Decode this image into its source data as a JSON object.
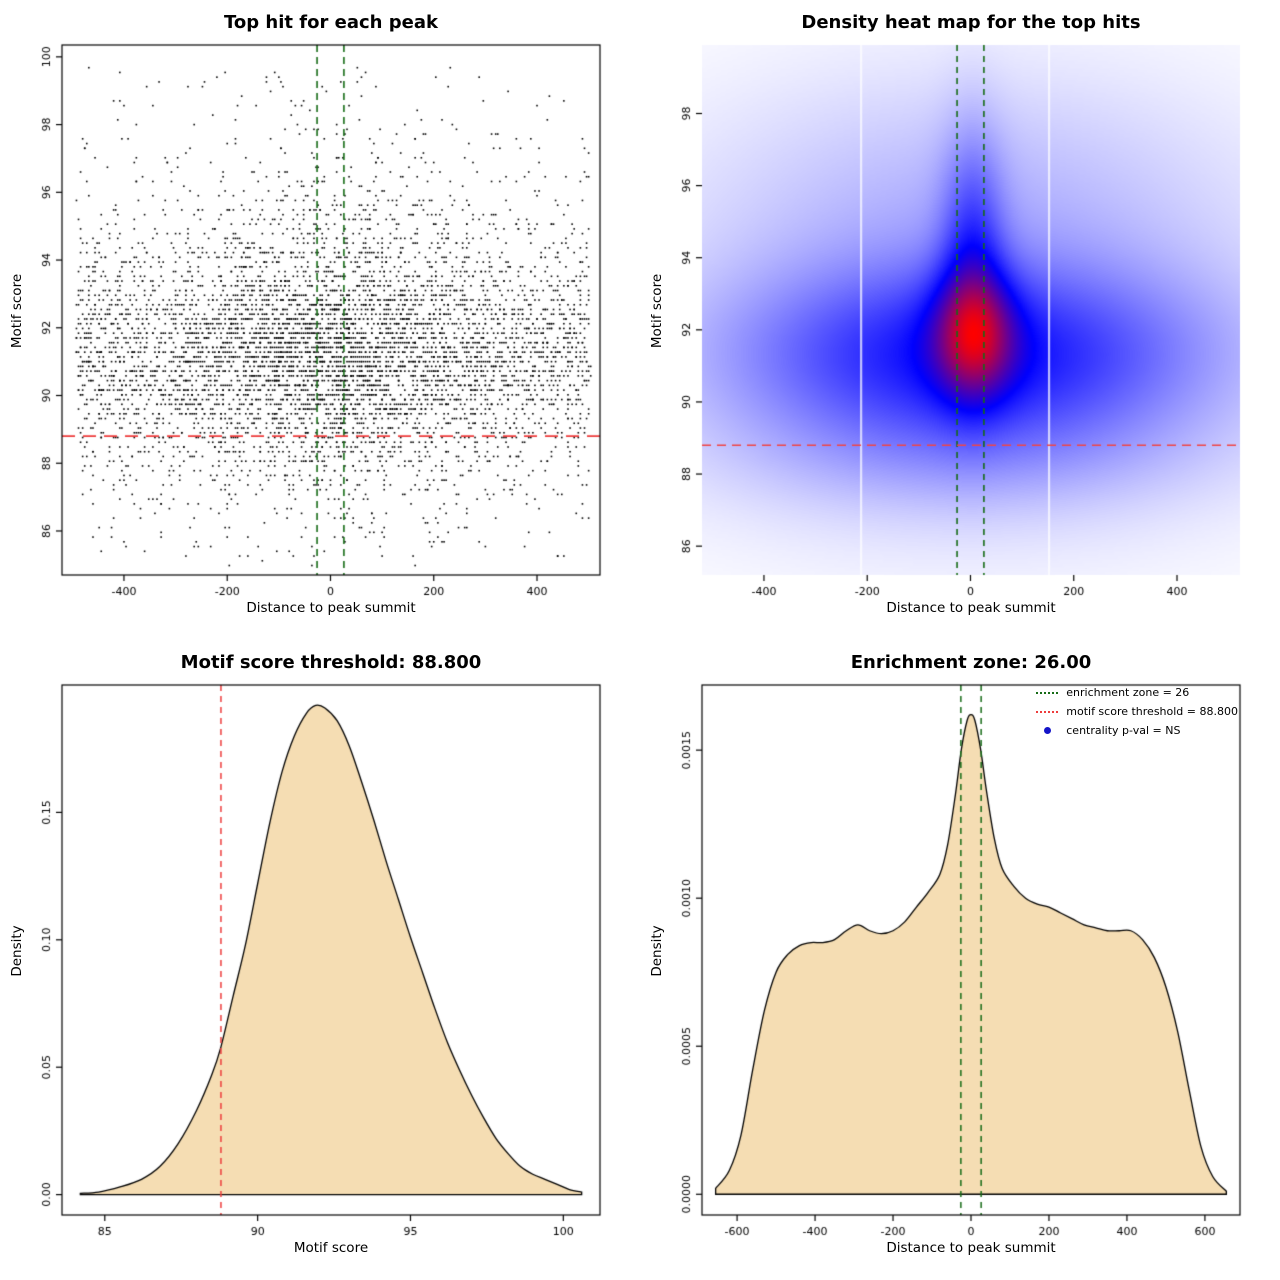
{
  "page": {
    "background": "#ffffff"
  },
  "chart_data": [
    {
      "type": "scatter",
      "title": "Top hit for each peak",
      "xlabel": "Distance to peak summit",
      "ylabel": "Motif score",
      "xlim": [
        -520,
        522
      ],
      "ylim": [
        84.7,
        100.35
      ],
      "xticks": [
        -400,
        -200,
        0,
        200,
        400
      ],
      "xtick_labels": [
        "-400",
        "-200",
        "0",
        "200",
        "400"
      ],
      "yticks": [
        86,
        88,
        90,
        92,
        94,
        96,
        98,
        100
      ],
      "ytick_labels": [
        "86",
        "88",
        "90",
        "92",
        "94",
        "96",
        "98",
        "100"
      ],
      "n_points": 6000,
      "seed": 1337,
      "x_dist": {
        "uniform_frac": 0.66,
        "uniform_range": [
          -492,
          502
        ],
        "center_sd": 155,
        "x_quantum": 4
      },
      "y_dist": [
        {
          "mean": 91.2,
          "sd": 1.45,
          "w": 0.6
        },
        {
          "mean": 93.6,
          "sd": 2.1,
          "w": 0.2
        },
        {
          "mean": 89.2,
          "sd": 1.7,
          "w": 0.13
        },
        {
          "uniform": [
            85.2,
            99.7
          ],
          "w": 0.07
        }
      ],
      "y_quantum": 0.14,
      "point_color": "#000000",
      "enrichment_zone_lines": {
        "x": [
          -26,
          26
        ],
        "color": "#166b16",
        "dash": [
          7,
          5
        ]
      },
      "threshold_line": {
        "y": 88.8,
        "color": "#ee3c3c",
        "dash": [
          13,
          8
        ]
      },
      "box": true
    },
    {
      "type": "heatmap",
      "title": "Density heat map for the top hits",
      "xlabel": "Distance to peak summit",
      "ylabel": "Motif score",
      "xlim": [
        -520,
        522
      ],
      "ylim": [
        85.2,
        99.9
      ],
      "xticks": [
        -400,
        -200,
        0,
        200,
        400
      ],
      "xtick_labels": [
        "-400",
        "-200",
        "0",
        "200",
        "400"
      ],
      "yticks": [
        86,
        88,
        90,
        92,
        94,
        96,
        98
      ],
      "ytick_labels": [
        "86",
        "88",
        "90",
        "92",
        "94",
        "96",
        "98"
      ],
      "colormap": "white-blue-red",
      "kernel_components": [
        {
          "cx": 0,
          "sx": 300,
          "cy": 91.3,
          "sy": 1.6,
          "w": 0.75
        },
        {
          "cx": 0,
          "sx": 400,
          "cy": 92.0,
          "sy": 3.5,
          "w": 0.3
        },
        {
          "cx": 8,
          "sx": 55,
          "cy": 91.9,
          "sy": 1.15,
          "w": 1.0
        },
        {
          "cx": 4,
          "sx": 42,
          "cy": 94.0,
          "sy": 2.3,
          "w": 0.55
        },
        {
          "cx": 0,
          "sx": 320,
          "cy": 88.6,
          "sy": 1.25,
          "w": 0.18
        },
        {
          "cx": 0,
          "sx": 350,
          "cy": 96.2,
          "sy": 2.4,
          "w": 0.12
        }
      ],
      "white_stripes_x": [
        -212,
        152
      ],
      "enrichment_zone_lines": {
        "x": [
          -26,
          26
        ],
        "color": "#166b16",
        "dash": [
          6,
          5
        ]
      },
      "threshold_line": {
        "y": 88.8,
        "color": "#f04545",
        "dash": [
          9,
          6
        ]
      },
      "box": false
    },
    {
      "type": "area",
      "title": "Motif score threshold: 88.800",
      "xlabel": "Motif score",
      "ylabel": "Density",
      "xlim": [
        83.6,
        101.2
      ],
      "ylim": [
        -0.008,
        0.2
      ],
      "xticks": [
        85,
        90,
        95,
        100
      ],
      "xtick_labels": [
        "85",
        "90",
        "95",
        "100"
      ],
      "yticks": [
        0,
        0.05,
        0.1,
        0.15
      ],
      "ytick_labels": [
        "0.00",
        "0.05",
        "0.10",
        "0.15"
      ],
      "fill_color": "#f5ddb3",
      "line_color": "#000000",
      "points": [
        [
          84.2,
          0.0005
        ],
        [
          84.8,
          0.001
        ],
        [
          85.5,
          0.003
        ],
        [
          86.2,
          0.006
        ],
        [
          86.8,
          0.011
        ],
        [
          87.4,
          0.02
        ],
        [
          88.0,
          0.033
        ],
        [
          88.5,
          0.047
        ],
        [
          88.8,
          0.058
        ],
        [
          89.2,
          0.078
        ],
        [
          89.6,
          0.098
        ],
        [
          90.0,
          0.122
        ],
        [
          90.4,
          0.146
        ],
        [
          90.8,
          0.166
        ],
        [
          91.2,
          0.18
        ],
        [
          91.6,
          0.189
        ],
        [
          91.9,
          0.192
        ],
        [
          92.2,
          0.191
        ],
        [
          92.6,
          0.186
        ],
        [
          93.0,
          0.176
        ],
        [
          93.4,
          0.162
        ],
        [
          93.8,
          0.147
        ],
        [
          94.2,
          0.131
        ],
        [
          94.6,
          0.116
        ],
        [
          95.0,
          0.101
        ],
        [
          95.4,
          0.087
        ],
        [
          95.8,
          0.073
        ],
        [
          96.2,
          0.06
        ],
        [
          96.6,
          0.049
        ],
        [
          97.0,
          0.039
        ],
        [
          97.4,
          0.03
        ],
        [
          97.8,
          0.022
        ],
        [
          98.2,
          0.016
        ],
        [
          98.6,
          0.011
        ],
        [
          99.0,
          0.008
        ],
        [
          99.4,
          0.006
        ],
        [
          99.8,
          0.004
        ],
        [
          100.2,
          0.002
        ],
        [
          100.6,
          0.001
        ]
      ],
      "vlines": {
        "x": [
          88.8
        ],
        "color": "#ee3c3c",
        "dash": [
          6,
          5
        ]
      },
      "box": true
    },
    {
      "type": "area",
      "title": "Enrichment zone: 26.00",
      "xlabel": "Distance to peak summit",
      "ylabel": "Density",
      "xlim": [
        -690,
        690
      ],
      "ylim": [
        -7e-05,
        0.00172
      ],
      "xticks": [
        -600,
        -400,
        -200,
        0,
        200,
        400,
        600
      ],
      "xtick_labels": [
        "-600",
        "-400",
        "-200",
        "0",
        "200",
        "400",
        "600"
      ],
      "yticks": [
        0,
        0.0005,
        0.001,
        0.0015
      ],
      "ytick_labels": [
        "0.0000",
        "0.0005",
        "0.0010",
        "0.0015"
      ],
      "fill_color": "#f5ddb3",
      "line_color": "#000000",
      "points": [
        [
          -655,
          2e-05
        ],
        [
          -620,
          8e-05
        ],
        [
          -590,
          0.0002
        ],
        [
          -560,
          0.00042
        ],
        [
          -530,
          0.00062
        ],
        [
          -500,
          0.00075
        ],
        [
          -470,
          0.00081
        ],
        [
          -440,
          0.00084
        ],
        [
          -410,
          0.00085
        ],
        [
          -380,
          0.00085
        ],
        [
          -350,
          0.00086
        ],
        [
          -320,
          0.00089
        ],
        [
          -290,
          0.00091
        ],
        [
          -260,
          0.00089
        ],
        [
          -230,
          0.00088
        ],
        [
          -200,
          0.00089
        ],
        [
          -170,
          0.00092
        ],
        [
          -140,
          0.00097
        ],
        [
          -110,
          0.00102
        ],
        [
          -80,
          0.00108
        ],
        [
          -60,
          0.00118
        ],
        [
          -40,
          0.00135
        ],
        [
          -25,
          0.0015
        ],
        [
          -10,
          0.0016
        ],
        [
          0,
          0.00162
        ],
        [
          10,
          0.0016
        ],
        [
          25,
          0.0015
        ],
        [
          40,
          0.00136
        ],
        [
          60,
          0.0012
        ],
        [
          80,
          0.0011
        ],
        [
          110,
          0.00104
        ],
        [
          140,
          0.001
        ],
        [
          170,
          0.00098
        ],
        [
          200,
          0.00097
        ],
        [
          230,
          0.00095
        ],
        [
          260,
          0.00093
        ],
        [
          290,
          0.00091
        ],
        [
          320,
          0.0009
        ],
        [
          350,
          0.00089
        ],
        [
          380,
          0.00089
        ],
        [
          410,
          0.00089
        ],
        [
          440,
          0.00086
        ],
        [
          470,
          0.0008
        ],
        [
          500,
          0.0007
        ],
        [
          530,
          0.00055
        ],
        [
          560,
          0.00035
        ],
        [
          590,
          0.00016
        ],
        [
          620,
          6e-05
        ],
        [
          655,
          1e-05
        ]
      ],
      "vlines": {
        "x": [
          -26,
          26
        ],
        "color": "#166b16",
        "dash": [
          6,
          5
        ]
      },
      "legend": {
        "items": [
          {
            "label": "enrichment zone = 26",
            "color": "#166b16",
            "marker": "dotted-line"
          },
          {
            "label": "motif score threshold = 88.800",
            "color": "#ee3c3c",
            "marker": "dotted-line"
          },
          {
            "label": "centrality p-val = NS",
            "color": "#1414c8",
            "marker": "dot"
          }
        ]
      },
      "box": true
    }
  ]
}
